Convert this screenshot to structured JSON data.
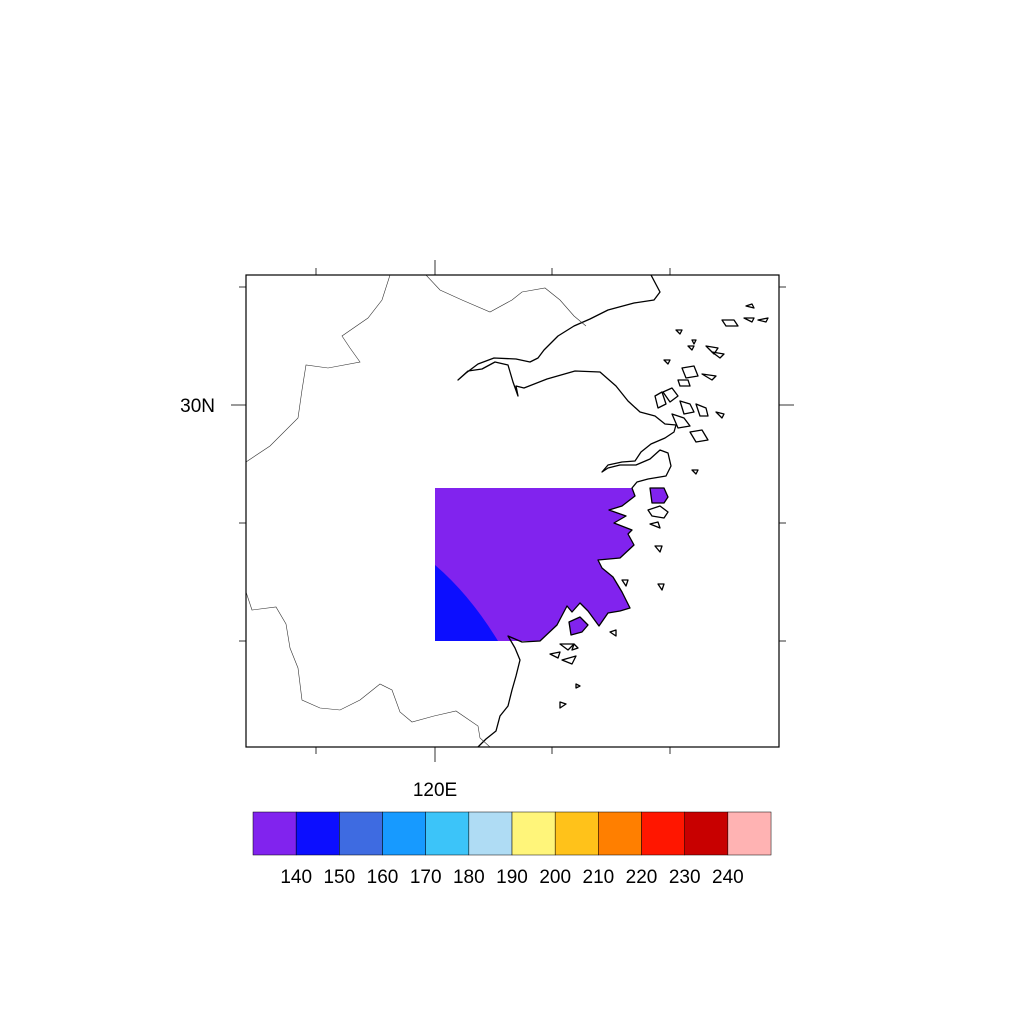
{
  "map": {
    "lat_label": "30N",
    "lon_label": "120E"
  },
  "colorbar": {
    "colors": [
      "#8123ee",
      "#0c0eff",
      "#3e6be1",
      "#179aff",
      "#3cc4f9",
      "#afdcf4",
      "#fff57a",
      "#ffc21a",
      "#ff7f00",
      "#ff1600",
      "#c80000",
      "#ffb3b3"
    ],
    "labels": [
      "140",
      "150",
      "160",
      "170",
      "180",
      "190",
      "200",
      "210",
      "220",
      "230",
      "240"
    ]
  },
  "field": {
    "main_color": "#8123ee",
    "corner_color": "#0c0eff"
  }
}
